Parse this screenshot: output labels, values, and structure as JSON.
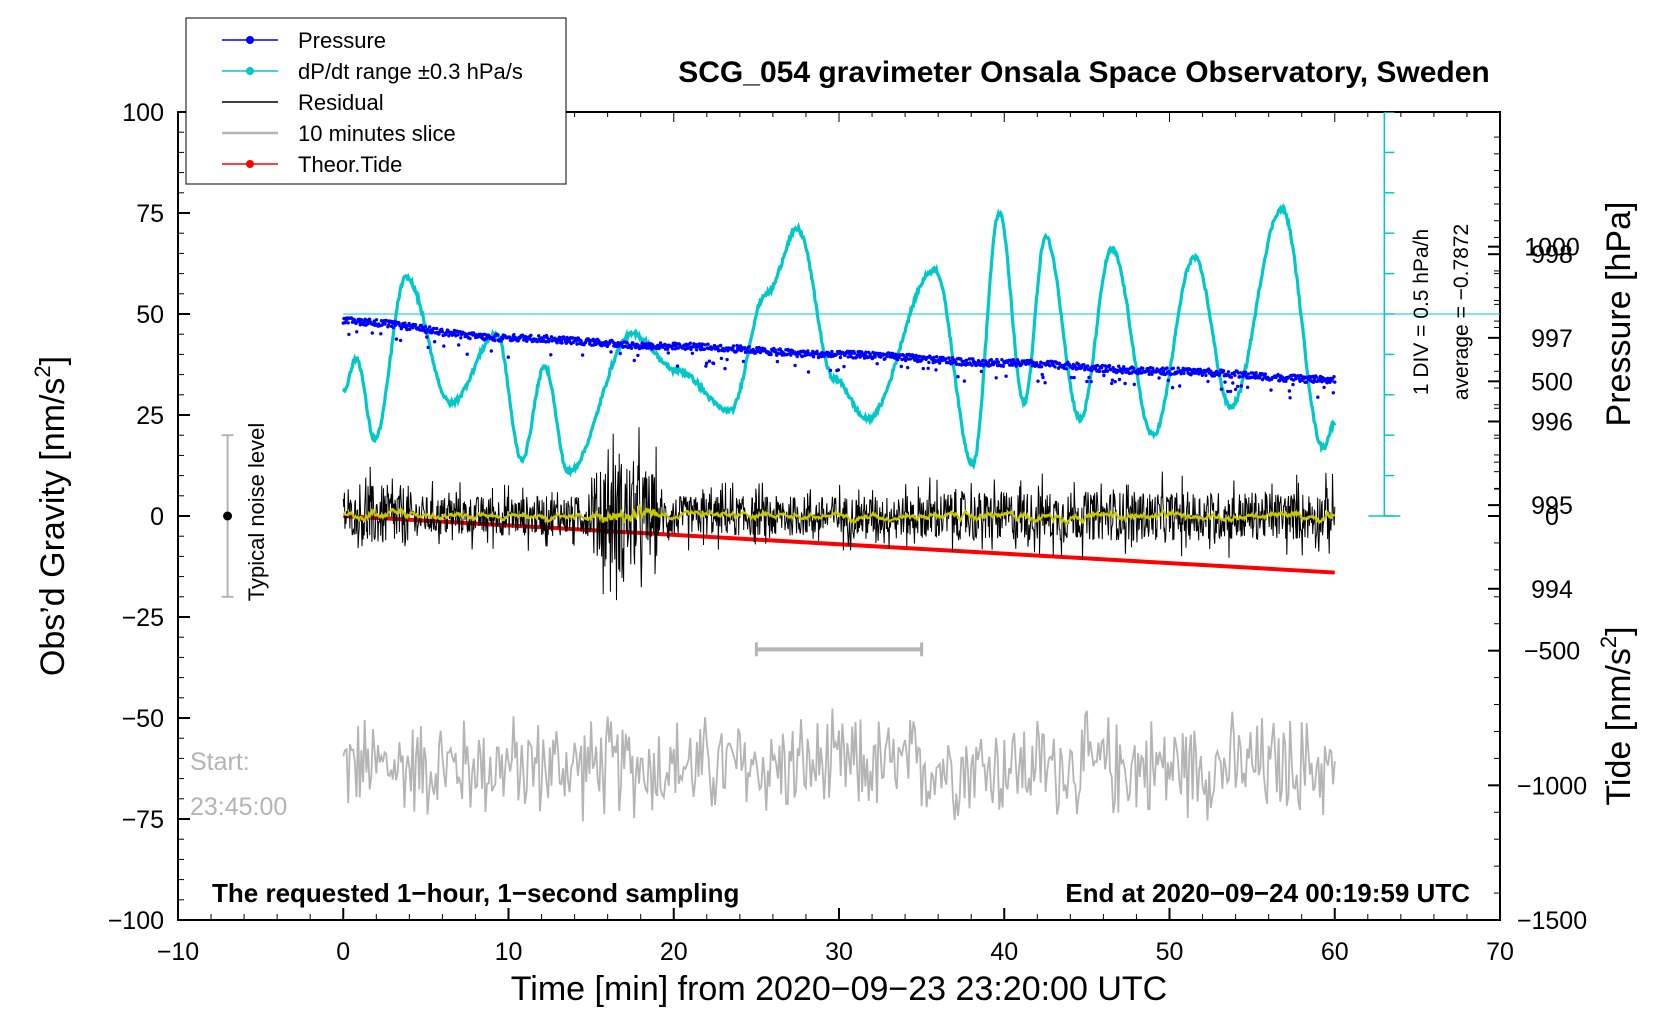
{
  "chart_data": {
    "type": "line",
    "title": "SCG_054 gravimeter Onsala Space Observatory, Sweden",
    "xlabel": "Time [min] from 2020−09−23 23:20:00 UTC",
    "ylabel_left": "Obs’d Gravity [nm/s",
    "ylabel_left_sup": "2",
    "ylabel_left_end": "]",
    "ylabel_pressure": "Pressure [hPa]",
    "ylabel_tide": "Tide [nm/s",
    "ylabel_tide_sup": "2",
    "ylabel_tide_end": "]",
    "xlim": [
      -10,
      70
    ],
    "ylim": [
      -100,
      100
    ],
    "x_ticks": [
      -10,
      0,
      10,
      20,
      30,
      40,
      50,
      60,
      70
    ],
    "x_tick_labels": [
      "−10",
      "0",
      "10",
      "20",
      "30",
      "40",
      "50",
      "60",
      "70"
    ],
    "y_ticks": [
      -100,
      -75,
      -50,
      -25,
      0,
      25,
      50,
      75,
      100
    ],
    "y_tick_labels": [
      "−100",
      "−75",
      "−50",
      "−25",
      "0",
      "25",
      "50",
      "75",
      "100"
    ],
    "pressure_axis": {
      "range": [
        990.04,
        999.7
      ],
      "ticks": [
        994,
        995,
        996,
        997,
        998
      ],
      "tick_labels": [
        "994",
        "995",
        "996",
        "997",
        "998"
      ]
    },
    "tide_axis": {
      "range": [
        -1500,
        1500
      ],
      "ticks": [
        -1500,
        -1000,
        -500,
        0,
        500,
        1000
      ],
      "tick_labels": [
        "−1500",
        "−1000",
        "−500",
        "0",
        "500",
        "1000"
      ]
    },
    "legend": {
      "position": "top-left",
      "entries": [
        {
          "label": "Pressure",
          "color": "#0000ff",
          "style": "line-dot"
        },
        {
          "label": "dP/dt range ±0.3 hPa/s",
          "color": "#00c8c8",
          "style": "line-dot"
        },
        {
          "label": "Residual",
          "color": "#000000",
          "style": "line"
        },
        {
          "label": "10 minutes slice",
          "color": "#b4b4b4",
          "style": "line"
        },
        {
          "label": "Theor.Tide",
          "color": "#ff0000",
          "style": "line-dot"
        }
      ]
    },
    "series": [
      {
        "name": "Pressure",
        "axis": "pressure",
        "x": [
          0,
          10,
          20,
          30,
          40,
          50,
          60
        ],
        "values": [
          997.2,
          997.0,
          996.9,
          996.8,
          996.7,
          996.6,
          996.5
        ]
      },
      {
        "name": "dP/dt",
        "axis": "left",
        "x": [
          0,
          0.8,
          1.9,
          3.8,
          6.5,
          9.3,
          10.8,
          12.2,
          13.6,
          17.5,
          20.2,
          23.4,
          25.6,
          27.5,
          29.7,
          31.7,
          35.8,
          38.1,
          39.7,
          41.2,
          42.5,
          44.6,
          46.5,
          49.0,
          51.5,
          53.7,
          56.8,
          59.3,
          60
        ],
        "values": [
          31,
          39,
          19,
          59,
          28,
          45,
          14,
          37,
          11,
          45,
          36,
          26,
          55,
          71,
          34,
          24,
          61,
          13,
          75,
          28,
          69,
          24,
          66,
          20,
          64,
          27,
          76,
          17,
          23
        ]
      },
      {
        "name": "Residual",
        "axis": "left",
        "x": [
          0,
          60
        ],
        "values": [
          0,
          0
        ],
        "amplitude": [
          -20,
          20
        ]
      },
      {
        "name": "10 minutes slice",
        "axis": "left",
        "x": [
          0,
          60
        ],
        "values": [
          -62,
          -62
        ],
        "amplitude": [
          -78,
          -48
        ]
      },
      {
        "name": "Theor.Tide",
        "axis": "tide",
        "x": [
          0,
          60
        ],
        "values": [
          0,
          -210
        ]
      }
    ],
    "dpdt_reference": {
      "value": 50,
      "label_div": "1 DIV = 0.5 hPa/h",
      "label_avg": "average = −0.7872"
    },
    "slice_bar": {
      "x": [
        25,
        35
      ],
      "y": -33
    },
    "noise_bar": {
      "x": -7,
      "y": [
        -20,
        20
      ],
      "label": "Typical noise level"
    },
    "start_label": "Start:",
    "start_time": "23:45:00",
    "bottom_left_note": "The requested 1−hour, 1−second sampling",
    "bottom_right_note": "End at 2020−09−24 00:19:59 UTC"
  }
}
